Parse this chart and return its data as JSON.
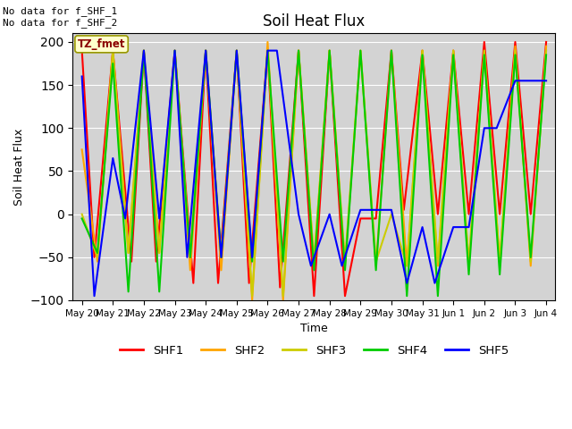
{
  "title": "Soil Heat Flux",
  "ylabel": "Soil Heat Flux",
  "xlabel": "Time",
  "ylim": [
    -100,
    210
  ],
  "yticks": [
    -100,
    -50,
    0,
    50,
    100,
    150,
    200
  ],
  "annotation_text": "No data for f_SHF_1\nNo data for f_SHF_2",
  "tz_label": "TZ_fmet",
  "background_color": "#d3d3d3",
  "legend_entries": [
    "SHF1",
    "SHF2",
    "SHF3",
    "SHF4",
    "SHF5"
  ],
  "legend_colors": [
    "#ff0000",
    "#ffa500",
    "#cccc00",
    "#00cc00",
    "#0000ff"
  ],
  "x_dates": [
    "May 20",
    "May 21",
    "May 22",
    "May 23",
    "May 24",
    "May 25",
    "May 26",
    "May 27",
    "May 28",
    "May 29",
    "May 30",
    "May 31",
    "Jun 1",
    "Jun 2",
    "Jun 3",
    "Jun 4"
  ],
  "shf1_x": [
    0,
    0.4,
    1,
    1.6,
    2,
    2.4,
    3,
    3.6,
    4,
    4.4,
    5,
    5.4,
    6,
    6.4,
    7,
    7.5,
    8,
    8.5,
    9,
    9.5,
    10,
    10.4,
    11,
    11.5,
    12,
    12.5,
    13,
    13.5,
    14,
    14.5,
    15
  ],
  "shf1_y": [
    190,
    -50,
    190,
    -55,
    190,
    -55,
    190,
    -80,
    190,
    -80,
    190,
    -80,
    190,
    -85,
    190,
    -95,
    190,
    -95,
    -5,
    -5,
    190,
    5,
    190,
    0,
    190,
    0,
    200,
    0,
    200,
    0,
    200
  ],
  "shf2_x": [
    0,
    0.5,
    1,
    1.5,
    2,
    2.5,
    3,
    3.5,
    4,
    4.5,
    5,
    5.5,
    6,
    6.5,
    7,
    7.5,
    8,
    8.5,
    9,
    9.5,
    10,
    10.5,
    11,
    11.5,
    12,
    12.5,
    13,
    13.5,
    14,
    14.5,
    15
  ],
  "shf2_y": [
    75,
    -55,
    190,
    -45,
    190,
    -45,
    190,
    -65,
    190,
    -65,
    190,
    -100,
    200,
    -100,
    190,
    -55,
    190,
    -60,
    190,
    -60,
    190,
    -60,
    190,
    -60,
    190,
    -60,
    190,
    -55,
    195,
    -60,
    195
  ],
  "shf3_x": [
    0,
    0.5,
    1,
    1.5,
    2,
    2.5,
    3,
    3.5,
    4,
    4.5,
    5,
    5.5,
    6,
    6.5,
    7,
    7.5,
    8,
    8.5,
    9,
    9.5,
    10,
    10.5,
    11,
    11.5,
    12,
    12.5,
    13,
    13.5,
    14,
    14.5,
    15
  ],
  "shf3_y": [
    0,
    -50,
    190,
    -45,
    190,
    -45,
    190,
    -45,
    190,
    -45,
    190,
    -95,
    190,
    -95,
    190,
    -55,
    190,
    -55,
    190,
    -55,
    0,
    -60,
    190,
    -55,
    190,
    -55,
    190,
    -55,
    190,
    -55,
    190
  ],
  "shf4_x": [
    0,
    0.5,
    1,
    1.5,
    2,
    2.5,
    3,
    3.5,
    4,
    4.5,
    5,
    5.5,
    6,
    6.5,
    7,
    7.5,
    8,
    8.5,
    9,
    9.5,
    10,
    10.5,
    11,
    11.5,
    12,
    12.5,
    13,
    13.5,
    14,
    14.5,
    15
  ],
  "shf4_y": [
    -5,
    -45,
    175,
    -90,
    190,
    -90,
    190,
    -50,
    190,
    -50,
    190,
    -55,
    190,
    -55,
    190,
    -65,
    190,
    -65,
    190,
    -65,
    190,
    -95,
    185,
    -95,
    185,
    -70,
    185,
    -70,
    185,
    -50,
    185
  ],
  "shf5_x": [
    0,
    0.4,
    1,
    1.4,
    2,
    2.5,
    3,
    3.4,
    4,
    4.5,
    5,
    5.5,
    6,
    6.3,
    7,
    7.4,
    8,
    8.4,
    9,
    9.3,
    10,
    10.5,
    11,
    11.4,
    12,
    12.5,
    13,
    13.4,
    14,
    14.4,
    15
  ],
  "shf5_y": [
    160,
    -95,
    65,
    -5,
    190,
    -5,
    190,
    -50,
    190,
    -50,
    190,
    -50,
    190,
    190,
    0,
    -60,
    0,
    -60,
    5,
    5,
    5,
    -80,
    -15,
    -80,
    -15,
    -15,
    100,
    100,
    155,
    155,
    155
  ]
}
